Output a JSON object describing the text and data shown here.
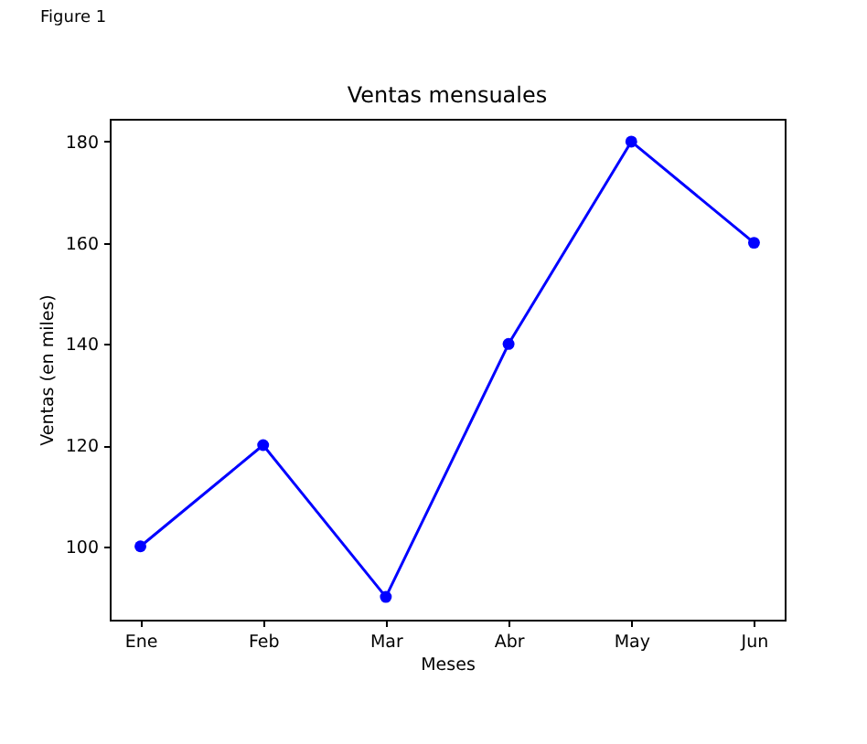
{
  "chart_data": {
    "type": "line",
    "title": "Ventas mensuales",
    "xlabel": "Meses",
    "ylabel": "Ventas (en miles)",
    "categories": [
      "Ene",
      "Feb",
      "Mar",
      "Abr",
      "May",
      "Jun"
    ],
    "series": [
      {
        "color": "#0000ff",
        "values": [
          100,
          120,
          90,
          140,
          180,
          160
        ]
      }
    ],
    "ylim": [
      85.5,
      184.5
    ],
    "yticks": [
      100,
      120,
      140,
      160,
      180
    ],
    "marker": "circle",
    "line_style": "solid",
    "annotations": [
      "Figure 1"
    ]
  }
}
